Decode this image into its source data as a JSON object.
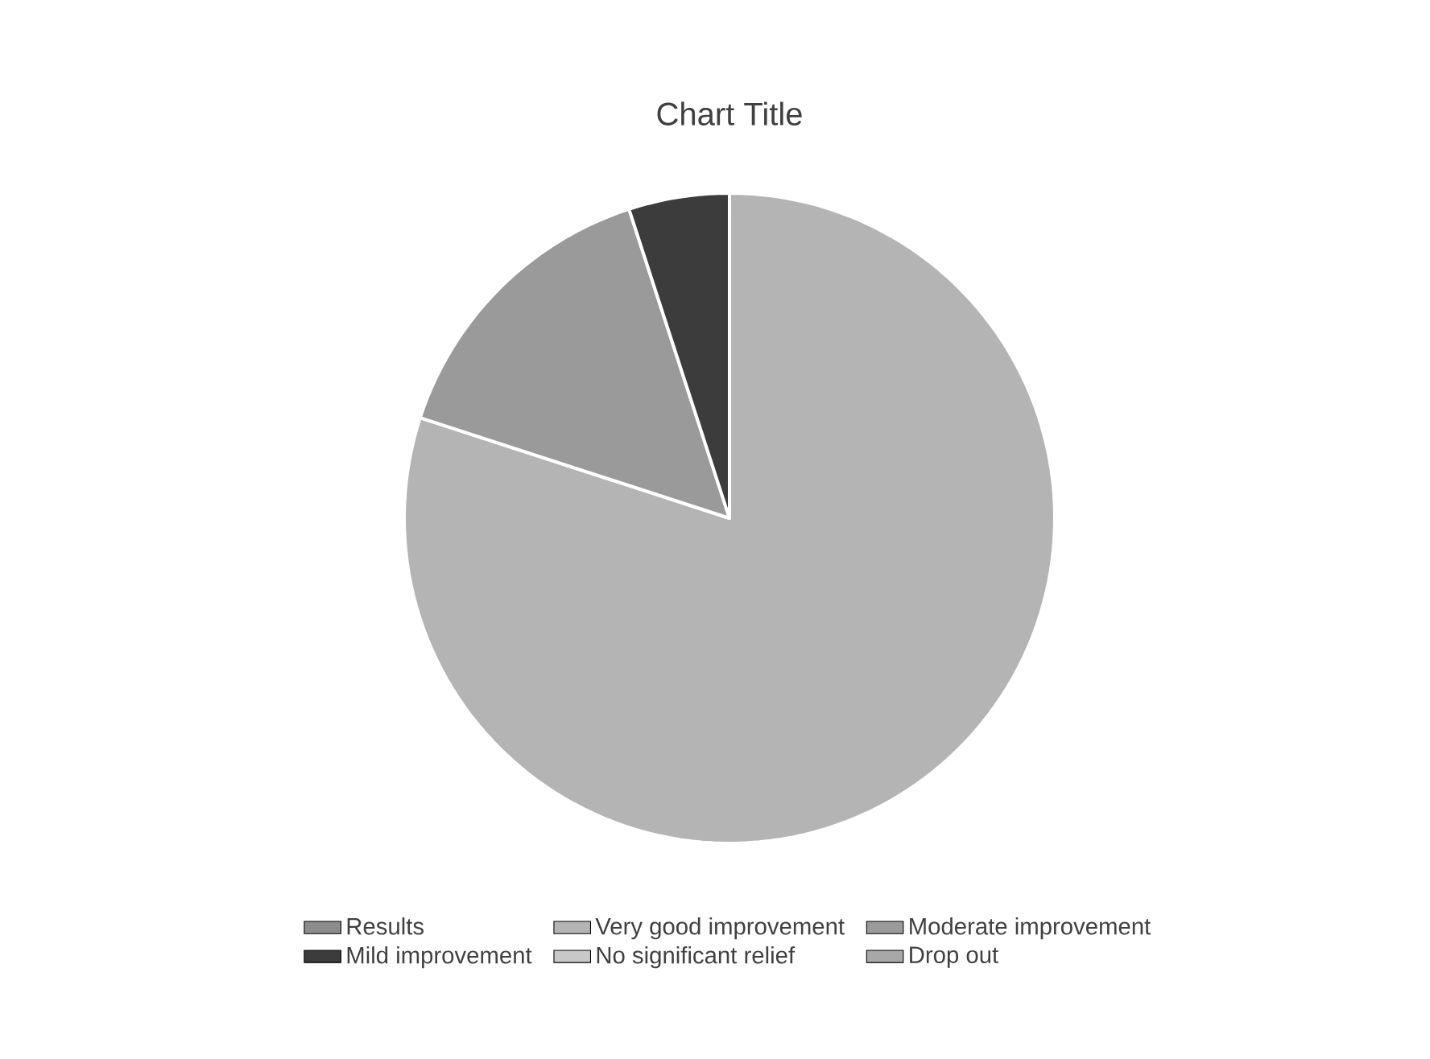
{
  "chart_data": {
    "type": "pie",
    "title": "Chart Title",
    "categories": [
      "Results",
      "Very good improvement",
      "Moderate improvement",
      "Mild improvement",
      "No significant relief",
      "Drop out"
    ],
    "values": [
      0,
      80,
      15,
      5,
      0,
      0
    ],
    "colors": [
      "#8c8c8c",
      "#b4b4b4",
      "#9a9a9a",
      "#3c3c3c",
      "#c8c8c8",
      "#a8a8a8"
    ],
    "legend": "bottom"
  }
}
